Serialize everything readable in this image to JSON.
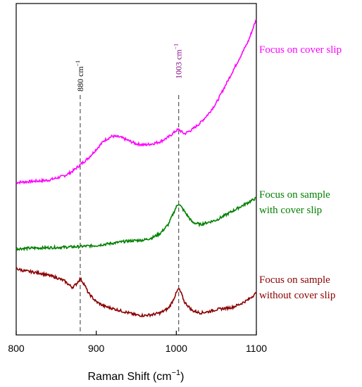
{
  "chart_data": {
    "type": "line",
    "xlabel": "Raman Shift (cm",
    "xlabel_sup": "−1",
    "xlabel_close": ")",
    "xlim": [
      800,
      1100
    ],
    "x_ticks": [
      800,
      900,
      1000,
      1100
    ],
    "y_ticks_shown": false,
    "grid": false,
    "legend": "inline labels at right end of each trace",
    "reference_lines": [
      {
        "x": 880,
        "label": "880 cm",
        "sup": "−1",
        "color": "#000000"
      },
      {
        "x": 1003,
        "label": "1003 cm",
        "sup": "−1",
        "color": "#800080"
      }
    ],
    "series": [
      {
        "name": "Focus on cover slip",
        "label_lines": [
          "Focus on cover slip"
        ],
        "color": "#ff00ff",
        "x": [
          800,
          820,
          840,
          860,
          870,
          880,
          890,
          900,
          910,
          920,
          930,
          940,
          950,
          960,
          970,
          980,
          990,
          1000,
          1003,
          1010,
          1020,
          1030,
          1040,
          1050,
          1060,
          1070,
          1080,
          1090,
          1100
        ],
        "y": [
          0.69,
          0.695,
          0.7,
          0.72,
          0.74,
          0.77,
          0.8,
          0.84,
          0.88,
          0.9,
          0.895,
          0.88,
          0.865,
          0.86,
          0.865,
          0.875,
          0.895,
          0.925,
          0.93,
          0.91,
          0.93,
          0.96,
          1.0,
          1.05,
          1.12,
          1.19,
          1.26,
          1.33,
          1.43
        ]
      },
      {
        "name": "Focus on sample with cover slip",
        "label_lines": [
          "Focus on sample",
          "with cover slip"
        ],
        "color": "#008000",
        "x": [
          800,
          820,
          840,
          860,
          880,
          900,
          920,
          940,
          960,
          970,
          980,
          990,
          995,
          1000,
          1003,
          1010,
          1020,
          1030,
          1040,
          1050,
          1060,
          1070,
          1080,
          1090,
          1100
        ],
        "y": [
          0.39,
          0.393,
          0.395,
          0.397,
          0.4,
          0.405,
          0.415,
          0.425,
          0.43,
          0.44,
          0.46,
          0.5,
          0.54,
          0.58,
          0.595,
          0.56,
          0.51,
          0.5,
          0.51,
          0.52,
          0.54,
          0.56,
          0.58,
          0.6,
          0.62
        ]
      },
      {
        "name": "Focus on sample without cover slip",
        "label_lines": [
          "Focus on sample",
          "without cover slip"
        ],
        "color": "#8b0000",
        "x": [
          800,
          810,
          820,
          830,
          840,
          850,
          860,
          870,
          875,
          880,
          885,
          890,
          900,
          910,
          920,
          930,
          940,
          950,
          960,
          970,
          980,
          990,
          995,
          1000,
          1003,
          1006,
          1010,
          1020,
          1030,
          1040,
          1050,
          1060,
          1070,
          1080,
          1090,
          1100
        ],
        "y": [
          0.3,
          0.29,
          0.285,
          0.28,
          0.27,
          0.26,
          0.245,
          0.215,
          0.23,
          0.255,
          0.23,
          0.19,
          0.15,
          0.13,
          0.12,
          0.11,
          0.1,
          0.09,
          0.088,
          0.092,
          0.1,
          0.12,
          0.15,
          0.19,
          0.21,
          0.19,
          0.15,
          0.11,
          0.1,
          0.105,
          0.115,
          0.12,
          0.125,
          0.14,
          0.16,
          0.19
        ]
      }
    ]
  }
}
